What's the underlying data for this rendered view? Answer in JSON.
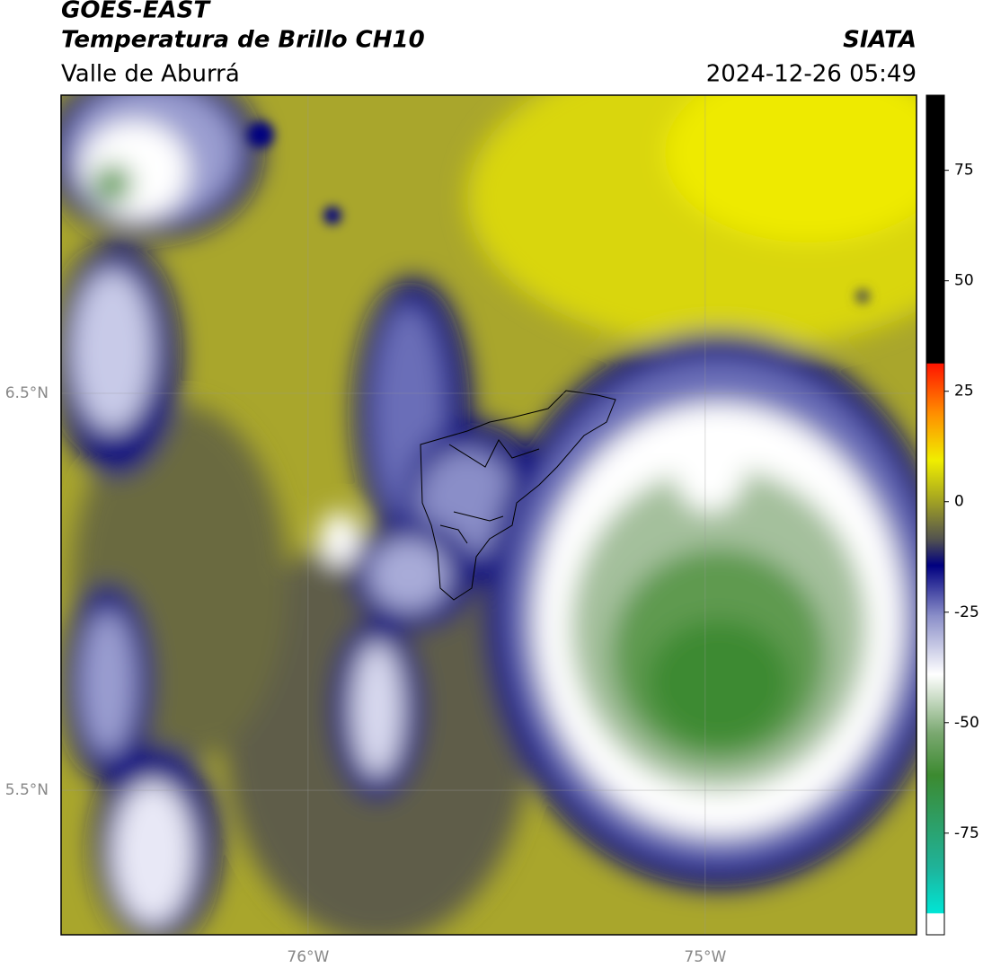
{
  "header": {
    "line1": "GOES-EAST",
    "line2": "Temperatura de Brillo CH10",
    "region": "Valle de Aburrá",
    "source": "SIATA",
    "datetime": "2024-12-26 05:49"
  },
  "map": {
    "xlim": [
      -76.622,
      -74.468
    ],
    "ylim": [
      5.136,
      7.251
    ],
    "xticks": [
      {
        "value": -76,
        "label": "76°W"
      },
      {
        "value": -75,
        "label": "75°W"
      }
    ],
    "yticks": [
      {
        "value": 6.5,
        "label": "6.5°N"
      },
      {
        "value": 5.5,
        "label": "5.5°N"
      }
    ],
    "grid": true
  },
  "colorbar": {
    "lim": [
      -98,
      92
    ],
    "ticks": [
      75,
      50,
      25,
      0,
      -25,
      -50,
      -75
    ]
  }
}
